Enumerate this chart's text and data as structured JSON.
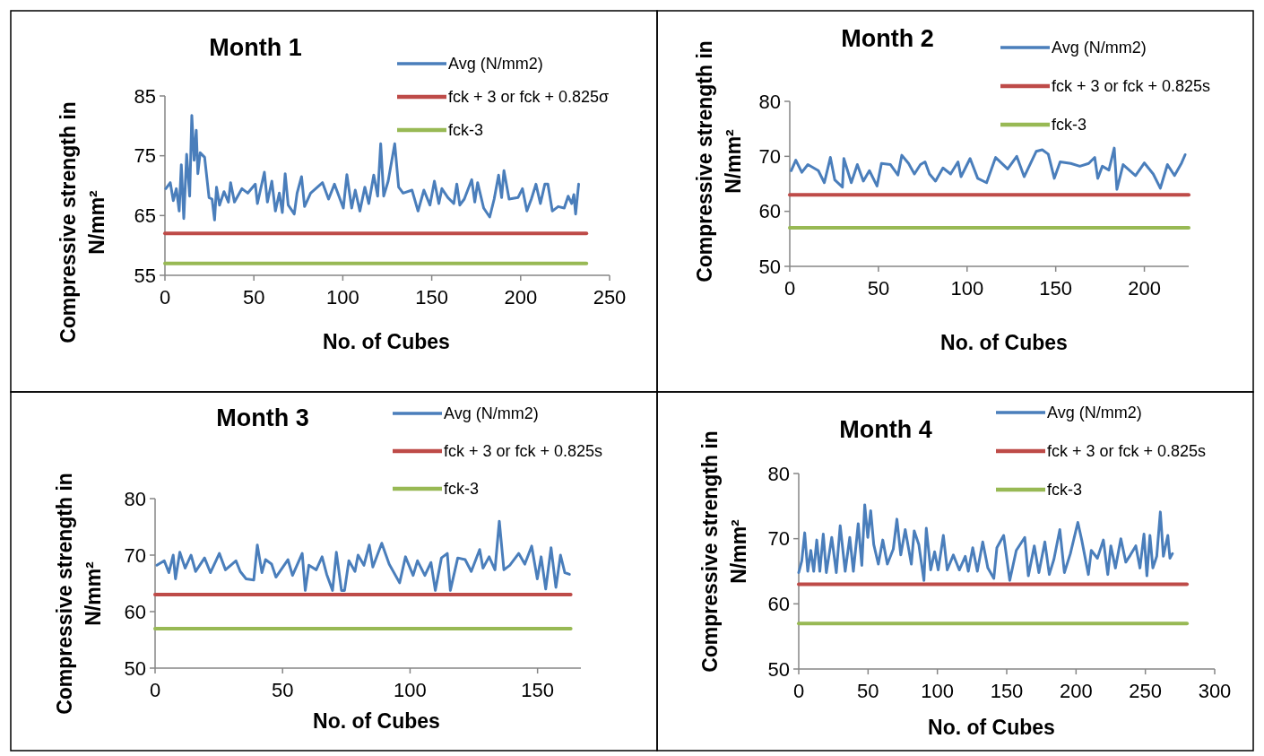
{
  "chart_data": [
    {
      "type": "line",
      "title": "Month 1",
      "xlabel": "No. of Cubes",
      "ylabel": "Compressive strength in N/mm²",
      "xlim": [
        0,
        250
      ],
      "xticks": [
        0,
        50,
        100,
        150,
        200,
        250
      ],
      "ylim": [
        55,
        85
      ],
      "yticks": [
        55,
        65,
        75,
        85
      ],
      "legend": "top right",
      "series": [
        {
          "name": "Avg (N/mm2)",
          "color": "#4a7ebb",
          "x": [
            0.5,
            3,
            4.7,
            6.4,
            8,
            9.2,
            10.6,
            12.2,
            13.9,
            15.1,
            16.4,
            17.6,
            18.5,
            19.8,
            22.3,
            24.8,
            26.5,
            27.9,
            29,
            30.7,
            33.2,
            35.7,
            36.9,
            39.1,
            43.3,
            46.6,
            50.8,
            52,
            55.9,
            57.6,
            60.1,
            62.1,
            64.3,
            66,
            67.6,
            69.3,
            72.7,
            74.3,
            76.8,
            78.5,
            81.9,
            88.6,
            92,
            95.3,
            100.3,
            102.3,
            105,
            107,
            109.6,
            112.4,
            114.6,
            117.4,
            119.6,
            121.3,
            123,
            125.5,
            129.2,
            131.4,
            133.9,
            138.9,
            142.3,
            145.6,
            149,
            151.5,
            154,
            155.7,
            159.1,
            162.4,
            164.1,
            165.8,
            168.3,
            172.5,
            174.2,
            175.8,
            179.2,
            182.6,
            185.1,
            187.6,
            189.3,
            190.6,
            193.5,
            198.5,
            201,
            203.5,
            206,
            208.6,
            211.1,
            213.6,
            215.3,
            217.8,
            221.1,
            224.5,
            226.7,
            228.7,
            229.9,
            230.9,
            232.6
          ],
          "values": [
            69.5,
            70.5,
            67.5,
            69.5,
            65.75,
            73.5,
            64.5,
            75.25,
            68.25,
            81.75,
            74.25,
            79.25,
            72,
            75.5,
            74.75,
            68,
            67.75,
            64.25,
            69.75,
            66.75,
            69,
            67.25,
            70.5,
            67.25,
            69.5,
            68.75,
            70.25,
            67,
            72.25,
            67.25,
            70.75,
            65.75,
            68.75,
            65.5,
            72,
            66.75,
            65.25,
            68.75,
            71.5,
            66.5,
            68.75,
            70.5,
            67.75,
            70.25,
            66.25,
            71.85,
            66.25,
            69.25,
            65.75,
            69.75,
            67,
            71.75,
            68.25,
            77,
            68.25,
            70.75,
            77,
            69.75,
            68.75,
            69.25,
            65.75,
            69.25,
            66.75,
            70.75,
            67,
            69.5,
            68,
            67,
            70.25,
            66.75,
            67.75,
            71,
            67.25,
            70.5,
            66.25,
            64.75,
            67.75,
            71.75,
            68,
            72.5,
            67.75,
            68,
            69.5,
            65.75,
            67.75,
            70.25,
            67,
            70.25,
            70.25,
            65.75,
            66.5,
            66.25,
            68.25,
            67,
            68.5,
            65.25,
            70.25
          ]
        },
        {
          "name": "fck + 3 or fck + 0.825σ",
          "color": "#be4b48",
          "x": [
            0,
            237
          ],
          "values": [
            62,
            62
          ]
        },
        {
          "name": "fck-3",
          "color": "#98b954",
          "x": [
            0,
            237
          ],
          "values": [
            57,
            57
          ]
        }
      ]
    },
    {
      "type": "line",
      "title": "Month 2",
      "xlabel": "No. of Cubes",
      "ylabel": "Compressive strength in N/mm²",
      "xlim": [
        0,
        225
      ],
      "xticks": [
        0,
        50,
        100,
        150,
        200
      ],
      "ylim": [
        50,
        80
      ],
      "yticks": [
        50,
        60,
        70,
        80
      ],
      "legend": "top right",
      "series": [
        {
          "name": "Avg (N/mm2)",
          "color": "#4a7ebb",
          "x": [
            0.8,
            3.4,
            6.8,
            10.2,
            16.1,
            19.5,
            22.9,
            25.4,
            29.7,
            30.5,
            34.7,
            38.1,
            41.5,
            44.9,
            49.2,
            51.7,
            56.8,
            61,
            63.2,
            67,
            70.3,
            73.7,
            76.3,
            78.8,
            82.2,
            86.4,
            90.7,
            94.9,
            96.6,
            101.7,
            106,
            111,
            116.1,
            122.9,
            128,
            132.2,
            139,
            142.4,
            145.8,
            149.2,
            152.5,
            158.5,
            163.6,
            168.6,
            172,
            173.7,
            176.3,
            180,
            183,
            184.5,
            188,
            195,
            200,
            205,
            209,
            213,
            217,
            221,
            223
          ],
          "values": [
            67.4,
            69.3,
            67.1,
            68.5,
            67.4,
            65.2,
            69.8,
            65.7,
            64.4,
            69.6,
            65.2,
            68.5,
            65.5,
            67.4,
            64.6,
            68.7,
            68.5,
            66.6,
            70.2,
            68.7,
            66.8,
            68.5,
            69,
            66.8,
            65.5,
            67.9,
            66.8,
            69,
            66.3,
            69.6,
            66,
            65.2,
            69.8,
            67.7,
            70,
            66.3,
            70.9,
            71.2,
            70.4,
            66,
            69,
            68.7,
            68.2,
            68.7,
            69.8,
            66,
            68.2,
            67.5,
            71.5,
            64,
            68.5,
            66.5,
            68.8,
            66.8,
            64.2,
            68.5,
            66.5,
            68.8,
            70.3
          ]
        },
        {
          "name": "fck + 3 or fck + 0.825s",
          "color": "#be4b48",
          "x": [
            0,
            225
          ],
          "values": [
            63,
            63
          ]
        },
        {
          "name": "fck-3",
          "color": "#98b954",
          "x": [
            0,
            225
          ],
          "values": [
            57,
            57
          ]
        }
      ]
    },
    {
      "type": "line",
      "title": "Month 3",
      "xlabel": "No. of Cubes",
      "ylabel": "Compressive strength in N/mm²",
      "xlim": [
        0,
        167
      ],
      "xticks": [
        0,
        50,
        100,
        150
      ],
      "ylim": [
        50,
        80
      ],
      "yticks": [
        50,
        60,
        70,
        80
      ],
      "legend": "top right",
      "series": [
        {
          "name": "Avg (N/mm2)",
          "color": "#4a7ebb",
          "x": [
            0.7,
            3.6,
            5.4,
            7.1,
            8,
            9.7,
            11.8,
            14.1,
            15.9,
            19.4,
            21.7,
            25.2,
            27.6,
            31.7,
            33.4,
            35.7,
            38.7,
            40.1,
            41.9,
            43.3,
            45.7,
            47.4,
            52.1,
            53.9,
            57.7,
            58.9,
            60.3,
            63.2,
            65.5,
            67.3,
            69.6,
            71.1,
            73.1,
            74.3,
            76,
            78.4,
            79.6,
            81.9,
            84,
            85.4,
            88.9,
            91.8,
            95.9,
            98.2,
            101.2,
            102.9,
            105.8,
            108.2,
            109.9,
            112.3,
            114.6,
            115.8,
            118.7,
            121.6,
            124,
            127.3,
            128.6,
            131,
            133.3,
            135,
            136.8,
            139.1,
            142.6,
            145,
            147.7,
            149.9,
            151.4,
            153.2,
            155.3,
            157.2,
            159,
            160.7,
            162.5
          ],
          "values": [
            68.2,
            69,
            66.9,
            70,
            65.8,
            70.5,
            67.7,
            70,
            67.1,
            69.5,
            66.9,
            70.3,
            67.4,
            69,
            67.1,
            65.8,
            65.6,
            71.8,
            66.9,
            69.2,
            68.4,
            66.1,
            69.2,
            66.4,
            70.3,
            63.75,
            68.2,
            67.4,
            69.7,
            66.6,
            63.75,
            70.5,
            63.75,
            63.75,
            69,
            67.1,
            70,
            68.2,
            71.8,
            67.9,
            72.1,
            68.4,
            65.1,
            69.7,
            66.4,
            69,
            66.4,
            68.7,
            63.75,
            69.5,
            70.3,
            63.75,
            69.5,
            69.2,
            67.1,
            71,
            67.7,
            69.7,
            67.4,
            76,
            67.4,
            68.2,
            70.3,
            68.4,
            71.6,
            65.8,
            69.7,
            64,
            71.3,
            64.3,
            70,
            66.9,
            66.6
          ]
        },
        {
          "name": "fck + 3 or fck + 0.825s",
          "color": "#be4b48",
          "x": [
            0,
            163
          ],
          "values": [
            63,
            63
          ]
        },
        {
          "name": "fck-3",
          "color": "#98b954",
          "x": [
            0,
            163
          ],
          "values": [
            57,
            57
          ]
        }
      ]
    },
    {
      "type": "line",
      "title": "Month 4",
      "xlabel": "No. of Cubes",
      "ylabel": "Compressive strength in N/mm²",
      "xlim": [
        0,
        300
      ],
      "xticks": [
        0,
        50,
        100,
        150,
        200,
        250,
        300
      ],
      "ylim": [
        50,
        80
      ],
      "yticks": [
        50,
        60,
        70,
        80
      ],
      "legend": "top right",
      "series": [
        {
          "name": "Avg (N/mm2)",
          "color": "#4a7ebb",
          "x": [
            0,
            2.2,
            4.3,
            6.5,
            8.7,
            10.8,
            13,
            15.2,
            17.7,
            19.9,
            23.8,
            27.1,
            29.9,
            33.5,
            36.8,
            39.4,
            42.9,
            45.5,
            47.6,
            49.8,
            51.9,
            54.1,
            57.4,
            60.6,
            63.9,
            68.2,
            70.8,
            73.6,
            76.8,
            81.2,
            83.3,
            86.6,
            90.3,
            92,
            95.2,
            98,
            100.6,
            104.3,
            107.1,
            111.5,
            115.8,
            120.1,
            122.3,
            125.5,
            128.8,
            132.7,
            136.4,
            140.7,
            142.9,
            147.8,
            152.2,
            156.9,
            163,
            165.6,
            169.9,
            173.2,
            177.5,
            180.7,
            184,
            188.3,
            191.6,
            195.9,
            201.3,
            204.1,
            208.9,
            211,
            215.4,
            219.7,
            222.9,
            225.1,
            228.4,
            232.3,
            235.9,
            239.2,
            243.1,
            246.1,
            249,
            251.1,
            253.3,
            255.4,
            258.2,
            260.8,
            263,
            266.2,
            267.7,
            269.5
          ],
          "values": [
            64.8,
            66.6,
            70.9,
            65,
            68.2,
            65,
            69.8,
            65,
            70.7,
            64.8,
            70.2,
            64.8,
            72,
            65,
            70.2,
            65,
            72.3,
            65.9,
            75.2,
            70.2,
            74.3,
            69.1,
            66.1,
            69.8,
            66.1,
            68.4,
            73,
            67.5,
            71.4,
            66.1,
            71.2,
            69.1,
            63.6,
            71.6,
            65.2,
            68,
            65.2,
            70.5,
            65.2,
            67.5,
            65.2,
            67.3,
            65,
            68.6,
            65,
            69.5,
            65.5,
            63.9,
            68.6,
            70.5,
            63.6,
            68.2,
            70.2,
            64.3,
            68.9,
            64.8,
            69.5,
            64.5,
            66.8,
            71.4,
            64.8,
            67.7,
            72.5,
            69.8,
            64.5,
            68.2,
            67,
            69.8,
            64.5,
            68.9,
            65.5,
            70,
            66.4,
            67.5,
            68.9,
            65.5,
            70.7,
            64.3,
            70.5,
            65.5,
            67.3,
            74.1,
            67.3,
            70.5,
            67,
            67.7
          ]
        },
        {
          "name": "fck + 3 or fck + 0.825s",
          "color": "#be4b48",
          "x": [
            0,
            280
          ],
          "values": [
            63,
            63
          ]
        },
        {
          "name": "fck-3",
          "color": "#98b954",
          "x": [
            0,
            280
          ],
          "values": [
            57,
            57
          ]
        }
      ]
    }
  ]
}
